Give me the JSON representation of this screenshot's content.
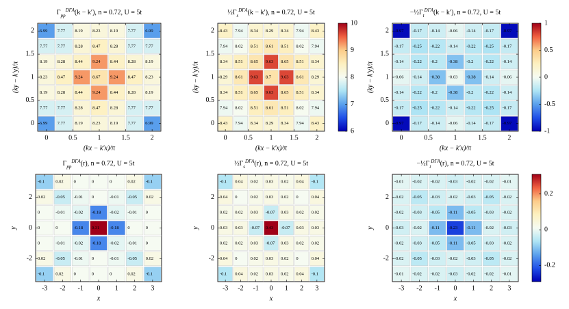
{
  "chart_data": [
    {
      "type": "heatmap",
      "title": {
        "main": "Γ",
        "sub": "pp",
        "sup": "DΓA",
        "rest": "(k − k′), n = 0.72, U = 5t"
      },
      "xlabel": "(kx − k′x)/π",
      "ylabel": "(ky − k′y)/π",
      "x": [
        0,
        0.3333,
        0.6667,
        1,
        1.3333,
        1.6667,
        2
      ],
      "y": [
        2,
        1.6667,
        1.3333,
        1,
        0.6667,
        0.3333,
        0
      ],
      "values": [
        [
          6.99,
          7.77,
          8.19,
          8.23,
          8.19,
          7.77,
          6.99
        ],
        [
          7.77,
          7.77,
          8.28,
          8.47,
          8.28,
          7.77,
          7.77
        ],
        [
          8.19,
          8.28,
          8.44,
          9.24,
          8.44,
          8.28,
          8.19
        ],
        [
          8.23,
          8.47,
          9.24,
          8.67,
          9.24,
          8.47,
          8.23
        ],
        [
          8.19,
          8.28,
          8.44,
          9.24,
          8.44,
          8.28,
          8.19
        ],
        [
          7.77,
          7.77,
          8.28,
          8.47,
          8.28,
          7.77,
          7.77
        ],
        [
          6.99,
          7.77,
          8.19,
          8.23,
          8.19,
          7.77,
          6.99
        ]
      ],
      "xlim": [
        -0.1667,
        2.1667
      ],
      "ylim": [
        -0.1667,
        2.1667
      ],
      "xticks": [
        0,
        0.5,
        1,
        1.5,
        2
      ],
      "yticks": [
        0,
        0.5,
        1,
        1.5,
        2
      ],
      "clim": [
        6,
        10
      ],
      "colorbar": false,
      "cmap": [
        "#0000b4",
        "#2050e8",
        "#5aa0ec",
        "#aee4f4",
        "#f6fbf2",
        "#fdf0c0",
        "#fccc8a",
        "#f06040",
        "#a00018"
      ]
    },
    {
      "type": "heatmap",
      "title": {
        "main": "½Γ",
        "sub": "s",
        "sup": "DΓA",
        "rest": "(k − k′), n = 0.72, U = 5t"
      },
      "xlabel": "(kx − k′x)/π",
      "ylabel": "(ky − k′y)/π",
      "x": [
        0,
        0.3333,
        0.6667,
        1,
        1.3333,
        1.6667,
        2
      ],
      "y": [
        2,
        1.6667,
        1.3333,
        1,
        0.6667,
        0.3333,
        0
      ],
      "values": [
        [
          8.43,
          7.94,
          8.34,
          8.29,
          8.34,
          7.94,
          8.43
        ],
        [
          7.94,
          8.02,
          8.51,
          8.61,
          8.51,
          8.02,
          7.94
        ],
        [
          8.34,
          8.51,
          8.65,
          9.63,
          8.65,
          8.51,
          8.34
        ],
        [
          8.29,
          8.61,
          9.63,
          8.7,
          9.63,
          8.61,
          8.29
        ],
        [
          8.34,
          8.51,
          8.65,
          9.63,
          8.65,
          8.51,
          8.34
        ],
        [
          7.94,
          8.02,
          8.51,
          8.61,
          8.51,
          8.02,
          7.94
        ],
        [
          8.43,
          7.94,
          8.34,
          8.29,
          8.34,
          7.94,
          8.43
        ]
      ],
      "xlim": [
        -0.1667,
        2.1667
      ],
      "ylim": [
        -0.1667,
        2.1667
      ],
      "xticks": [
        0,
        0.5,
        1,
        1.5,
        2
      ],
      "yticks": [
        0,
        0.5,
        1,
        1.5,
        2
      ],
      "clim": [
        6,
        10
      ],
      "colorbar": true,
      "cticks": [
        6,
        7,
        8,
        9,
        10
      ],
      "cmap": [
        "#0000b4",
        "#2050e8",
        "#5aa0ec",
        "#aee4f4",
        "#f6fbf2",
        "#fdf0c0",
        "#fccc8a",
        "#f06040",
        "#a00018"
      ]
    },
    {
      "type": "heatmap",
      "title": {
        "main": "−½Γ",
        "sub": "t",
        "sup": "DΓA",
        "rest": "(k − k′), n = 0.72, U = 5t"
      },
      "xlabel": "(kx − k′x)/π",
      "ylabel": "(ky − k′y)/π",
      "x": [
        0,
        0.3333,
        0.6667,
        1,
        1.3333,
        1.6667,
        2
      ],
      "y": [
        2,
        1.6667,
        1.3333,
        1,
        0.6667,
        0.3333,
        0
      ],
      "values": [
        [
          -0.97,
          -0.17,
          -0.14,
          -0.06,
          -0.14,
          -0.17,
          -0.97
        ],
        [
          -0.17,
          -0.25,
          -0.22,
          -0.14,
          -0.22,
          -0.25,
          -0.17
        ],
        [
          -0.14,
          -0.22,
          -0.2,
          -0.38,
          -0.2,
          -0.22,
          -0.14
        ],
        [
          -0.06,
          -0.14,
          -0.38,
          -0.03,
          -0.38,
          -0.14,
          -0.06
        ],
        [
          -0.14,
          -0.22,
          -0.2,
          -0.38,
          -0.2,
          -0.22,
          -0.14
        ],
        [
          -0.17,
          -0.25,
          -0.22,
          -0.14,
          -0.22,
          -0.25,
          -0.17
        ],
        [
          -0.97,
          -0.17,
          -0.14,
          -0.06,
          -0.14,
          -0.17,
          -0.97
        ]
      ],
      "xlim": [
        -0.1667,
        2.1667
      ],
      "ylim": [
        -0.1667,
        2.1667
      ],
      "xticks": [
        0,
        0.5,
        1,
        1.5,
        2
      ],
      "yticks": [
        0,
        0.5,
        1,
        1.5,
        2
      ],
      "clim": [
        -1,
        1
      ],
      "colorbar": true,
      "cticks": [
        -1,
        -0.5,
        0,
        0.5,
        1
      ],
      "cmap": [
        "#0000b4",
        "#2050e8",
        "#5aa0ec",
        "#aee4f4",
        "#f6fbf2",
        "#fdf0c0",
        "#fccc8a",
        "#f06040",
        "#a00018"
      ]
    },
    {
      "type": "heatmap",
      "title": {
        "main": "Γ",
        "sub": "pp",
        "sup": "DΓA",
        "rest": "(r), n = 0.72, U = 5t"
      },
      "xlabel": "x",
      "ylabel": "y",
      "x": [
        -3,
        -2,
        -1,
        0,
        1,
        2,
        3
      ],
      "y": [
        3,
        2,
        1,
        0,
        -1,
        -2,
        -3
      ],
      "values": [
        [
          -0.1,
          0.02,
          0,
          0,
          0,
          0.02,
          -0.1
        ],
        [
          0.02,
          -0.05,
          -0.01,
          0,
          -0.01,
          -0.05,
          0.02
        ],
        [
          0,
          -0.01,
          -0.02,
          -0.18,
          -0.02,
          -0.01,
          0
        ],
        [
          0,
          0,
          -0.18,
          0.31,
          -0.18,
          0,
          0
        ],
        [
          0,
          -0.01,
          -0.02,
          -0.18,
          -0.02,
          -0.01,
          0
        ],
        [
          0.02,
          -0.05,
          -0.01,
          0,
          -0.01,
          -0.05,
          0.02
        ],
        [
          -0.1,
          0.02,
          0,
          0,
          0,
          0.02,
          -0.1
        ]
      ],
      "xlim": [
        -3.5,
        3.5
      ],
      "ylim": [
        -3.5,
        3.5
      ],
      "xticks": [
        -3,
        -2,
        -1,
        0,
        1,
        2,
        3
      ],
      "yticks": [
        -2,
        0,
        2
      ],
      "clim": [
        -0.31,
        0.31
      ],
      "colorbar": false,
      "cmap": [
        "#0000b4",
        "#2050e8",
        "#5aa0ec",
        "#aee4f4",
        "#f6fbf2",
        "#fdf0c0",
        "#fccc8a",
        "#f06040",
        "#a00018"
      ]
    },
    {
      "type": "heatmap",
      "title": {
        "main": "½Γ",
        "sub": "s",
        "sup": "DΓA",
        "rest": "(r), n = 0.72, U = 5t"
      },
      "xlabel": "x",
      "ylabel": "y",
      "x": [
        -3,
        -2,
        -1,
        0,
        1,
        2,
        3
      ],
      "y": [
        3,
        2,
        1,
        0,
        -1,
        -2,
        -3
      ],
      "values": [
        [
          -0.1,
          0.04,
          0.02,
          0.03,
          0.02,
          0.04,
          -0.1
        ],
        [
          0.04,
          0,
          0.02,
          0.03,
          0.02,
          0,
          0.04
        ],
        [
          0.02,
          0.02,
          0.03,
          -0.07,
          0.03,
          0.02,
          0.02
        ],
        [
          0.03,
          0.03,
          -0.07,
          0.43,
          -0.07,
          0.03,
          0.03
        ],
        [
          0.02,
          0.02,
          0.03,
          -0.07,
          0.03,
          0.02,
          0.02
        ],
        [
          0.04,
          0,
          0.02,
          0.03,
          0.02,
          0,
          0.04
        ],
        [
          -0.1,
          0.04,
          0.02,
          0.03,
          0.02,
          0.04,
          -0.1
        ]
      ],
      "xlim": [
        -3.5,
        3.5
      ],
      "ylim": [
        -3.5,
        3.5
      ],
      "xticks": [
        -3,
        -2,
        -1,
        0,
        1,
        2,
        3
      ],
      "yticks": [
        -2,
        0,
        2
      ],
      "clim": [
        -0.43,
        0.43
      ],
      "colorbar": false,
      "cmap": [
        "#0000b4",
        "#2050e8",
        "#5aa0ec",
        "#aee4f4",
        "#f6fbf2",
        "#fdf0c0",
        "#fccc8a",
        "#f06040",
        "#a00018"
      ]
    },
    {
      "type": "heatmap",
      "title": {
        "main": "−½Γ",
        "sub": "t",
        "sup": "DΓA",
        "rest": "(r), n = 0.72, U = 5t"
      },
      "xlabel": "x",
      "ylabel": "y",
      "x": [
        -3,
        -2,
        -1,
        0,
        1,
        2,
        3
      ],
      "y": [
        3,
        2,
        1,
        0,
        -1,
        -2,
        -3
      ],
      "values": [
        [
          -0.01,
          -0.02,
          -0.02,
          -0.03,
          -0.02,
          -0.02,
          -0.01
        ],
        [
          -0.02,
          -0.05,
          -0.03,
          -0.02,
          -0.03,
          -0.05,
          -0.02
        ],
        [
          -0.02,
          -0.03,
          -0.05,
          -0.11,
          -0.05,
          -0.03,
          -0.02
        ],
        [
          -0.03,
          -0.02,
          -0.11,
          -0.23,
          -0.11,
          -0.02,
          -0.03
        ],
        [
          -0.02,
          -0.03,
          -0.05,
          -0.11,
          -0.05,
          -0.03,
          -0.02
        ],
        [
          -0.02,
          -0.05,
          -0.03,
          -0.02,
          -0.03,
          -0.05,
          -0.02
        ],
        [
          -0.01,
          -0.02,
          -0.02,
          -0.03,
          -0.02,
          -0.02,
          -0.01
        ]
      ],
      "xlim": [
        -3.5,
        3.5
      ],
      "ylim": [
        -3.5,
        3.5
      ],
      "xticks": [
        -3,
        -2,
        -1,
        0,
        1,
        2,
        3
      ],
      "yticks": [
        -2,
        0,
        2
      ],
      "clim": [
        -0.29,
        0.31
      ],
      "colorbar": true,
      "cticks": [
        -0.2,
        0,
        0.2
      ],
      "cmap": [
        "#0000b4",
        "#2050e8",
        "#5aa0ec",
        "#aee4f4",
        "#f6fbf2",
        "#fdf0c0",
        "#fccc8a",
        "#f06040",
        "#a00018"
      ]
    }
  ]
}
